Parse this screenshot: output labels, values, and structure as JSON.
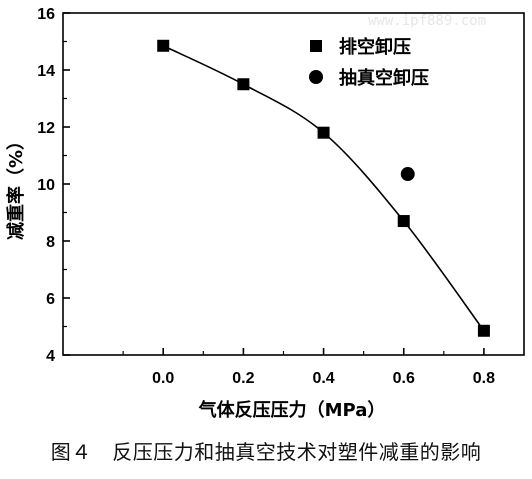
{
  "chart_data": {
    "type": "scatter",
    "xlabel": "气体反压压力（MPa）",
    "ylabel": "减重率（%）",
    "xlim": [
      -0.25,
      0.9
    ],
    "ylim": [
      4,
      16
    ],
    "xticks": [
      "0.0",
      "0.2",
      "0.4",
      "0.6",
      "0.8"
    ],
    "yticks": [
      "4",
      "6",
      "8",
      "10",
      "12",
      "14",
      "16"
    ],
    "legend_position": "top-right",
    "series": [
      {
        "name": "排空卸压",
        "marker": "square",
        "color": "#000000",
        "fit_line": true,
        "points": [
          {
            "x": 0.0,
            "y": 14.85
          },
          {
            "x": 0.2,
            "y": 13.5
          },
          {
            "x": 0.4,
            "y": 11.8
          },
          {
            "x": 0.6,
            "y": 8.7
          },
          {
            "x": 0.8,
            "y": 4.85
          }
        ]
      },
      {
        "name": "抽真空卸压",
        "marker": "circle",
        "color": "#000000",
        "fit_line": false,
        "points": [
          {
            "x": 0.61,
            "y": 10.35
          }
        ]
      }
    ]
  },
  "watermark": "www.ipf889.com",
  "caption": "图４　反压压力和抽真空技术对塑件减重的影响"
}
